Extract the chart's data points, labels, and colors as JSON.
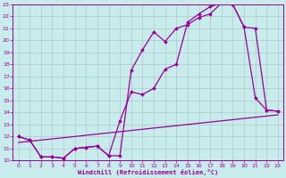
{
  "xlabel": "Windchill (Refroidissement éolien,°C)",
  "background_color": "#c8ecec",
  "line_color": "#990099",
  "grid_color": "#b0c8c8",
  "xlim": [
    -0.5,
    23.5
  ],
  "ylim": [
    10,
    23
  ],
  "yticks": [
    10,
    11,
    12,
    13,
    14,
    15,
    16,
    17,
    18,
    19,
    20,
    21,
    22,
    23
  ],
  "xticks": [
    0,
    1,
    2,
    3,
    4,
    5,
    6,
    7,
    8,
    9,
    10,
    11,
    12,
    13,
    14,
    15,
    16,
    17,
    18,
    19,
    20,
    21,
    22,
    23
  ],
  "line1_x": [
    0,
    1,
    2,
    3,
    4,
    5,
    6,
    7,
    8,
    9,
    10,
    11,
    12,
    13,
    14,
    15,
    16,
    17,
    18,
    19,
    20,
    21,
    22,
    23
  ],
  "line1_y": [
    12,
    11.7,
    10.3,
    10.3,
    10.2,
    11,
    11.1,
    11.2,
    10.4,
    10.4,
    17.5,
    19.2,
    20.7,
    19.9,
    21.0,
    21.3,
    21.9,
    22.2,
    23.1,
    23.0,
    21.1,
    15.2,
    14.2,
    14.1
  ],
  "line2_x": [
    0,
    1,
    2,
    3,
    4,
    5,
    6,
    7,
    8,
    9,
    10,
    11,
    12,
    13,
    14,
    15,
    16,
    17,
    18,
    19,
    20,
    21,
    22,
    23
  ],
  "line2_y": [
    12,
    11.7,
    10.3,
    10.3,
    10.2,
    11,
    11.1,
    11.2,
    10.4,
    13.3,
    15.7,
    15.5,
    16.0,
    17.6,
    18.0,
    21.5,
    22.2,
    22.8,
    23.1,
    23.0,
    21.1,
    21.0,
    14.2,
    14.1
  ],
  "line3_x": [
    0,
    23
  ],
  "line3_y": [
    11.5,
    13.8
  ]
}
